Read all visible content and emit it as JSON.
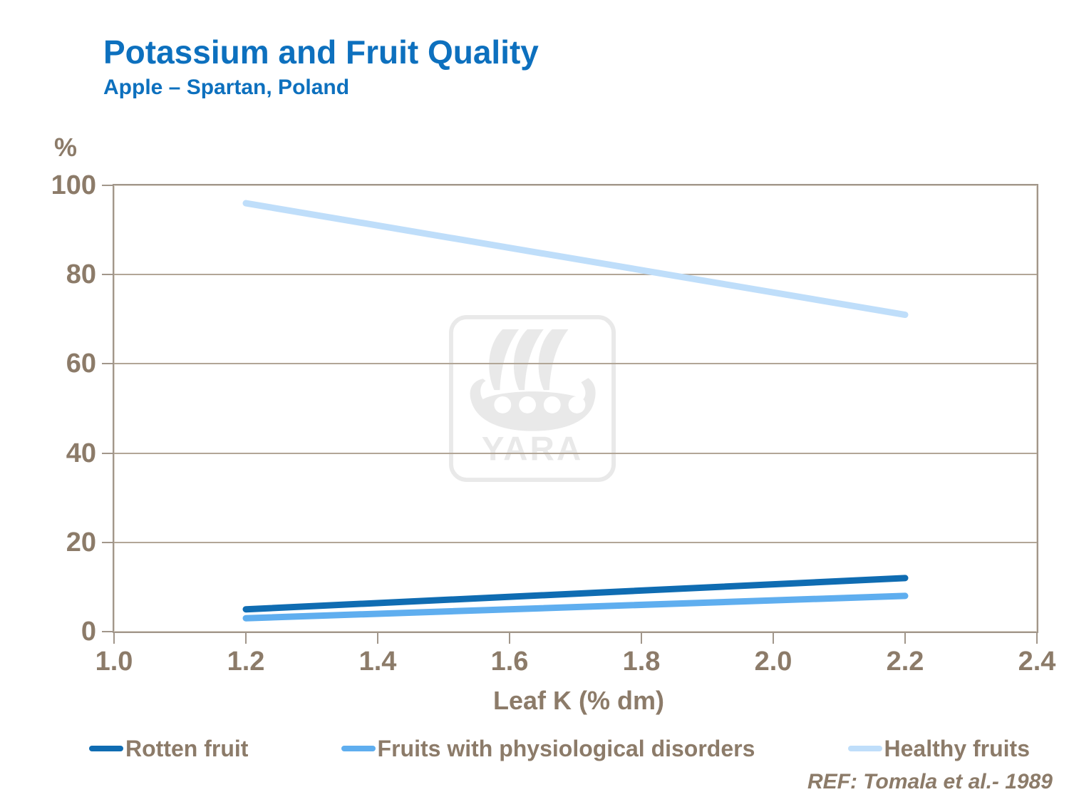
{
  "slide": {
    "title": "Potassium and Fruit Quality",
    "subtitle": "Apple – Spartan, Poland",
    "reference": "REF: Tomala et al.- 1989",
    "watermark_text": "YARA"
  },
  "colors": {
    "title_blue": "#0D70BE",
    "axis_text_brown": "#8C7B69",
    "plot_border": "#A1968A",
    "gridline": "#B2A697",
    "tick": "#A1968A",
    "watermark_gray": "#E9E9E9",
    "rotten_fruit_line": "#0F6CB2",
    "disorders_line": "#5FAEEF",
    "healthy_line": "#BFDEFA"
  },
  "chart_data": {
    "type": "line",
    "title": "Potassium and Fruit Quality",
    "subtitle": "Apple – Spartan, Poland",
    "xlabel": "Leaf K (% dm)",
    "ylabel": "%",
    "xlim": [
      1.0,
      2.4
    ],
    "ylim": [
      0,
      100
    ],
    "x_ticks": [
      "1.0",
      "1.2",
      "1.4",
      "1.6",
      "1.8",
      "2.0",
      "2.2",
      "2.4"
    ],
    "y_ticks": [
      "0",
      "20",
      "40",
      "60",
      "80",
      "100"
    ],
    "grid": "horizontal",
    "legend_position": "bottom",
    "series": [
      {
        "name": "Rotten fruit",
        "color": "#0F6CB2",
        "x": [
          1.2,
          2.2
        ],
        "values": [
          5,
          12
        ]
      },
      {
        "name": "Fruits with physiological disorders",
        "color": "#5FAEEF",
        "x": [
          1.2,
          2.2
        ],
        "values": [
          3,
          8
        ]
      },
      {
        "name": "Healthy fruits",
        "color": "#BFDEFA",
        "x": [
          1.2,
          2.2
        ],
        "values": [
          96,
          71
        ]
      }
    ]
  }
}
